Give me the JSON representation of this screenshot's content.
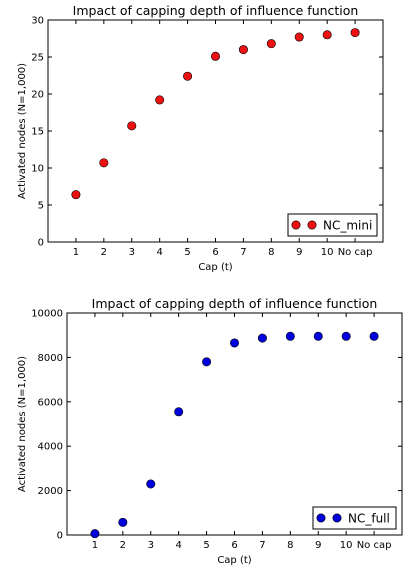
{
  "chart_data": [
    {
      "type": "scatter",
      "title": "Impact of capping depth of influence function",
      "xlabel": "Cap (t)",
      "ylabel": "Activated nodes (N=1,000)",
      "categories": [
        "1",
        "2",
        "3",
        "4",
        "5",
        "6",
        "7",
        "8",
        "9",
        "10",
        "No cap"
      ],
      "ylim": [
        0,
        30
      ],
      "yticks": [
        "0",
        "5",
        "10",
        "15",
        "20",
        "25",
        "30"
      ],
      "grid": false,
      "legend_position": "lower-right",
      "series": [
        {
          "name": "NC_mini",
          "color": "#ee1111",
          "values": [
            6.4,
            10.7,
            15.7,
            19.2,
            22.4,
            25.1,
            26.0,
            26.8,
            27.7,
            28.0,
            28.3
          ]
        }
      ]
    },
    {
      "type": "scatter",
      "title": "Impact of capping depth of influence function",
      "xlabel": "Cap (t)",
      "ylabel": "Activated nodes (N=1,000)",
      "categories": [
        "1",
        "2",
        "3",
        "4",
        "5",
        "6",
        "7",
        "8",
        "9",
        "10",
        "No cap"
      ],
      "ylim": [
        0,
        10000
      ],
      "yticks": [
        "0",
        "2000",
        "4000",
        "6000",
        "8000",
        "10000"
      ],
      "grid": false,
      "legend_position": "lower-right",
      "series": [
        {
          "name": "NC_full",
          "color": "#0000dd",
          "values": [
            60,
            570,
            2300,
            5550,
            7800,
            8650,
            8870,
            8950,
            8950,
            8950,
            8950
          ]
        }
      ]
    }
  ]
}
